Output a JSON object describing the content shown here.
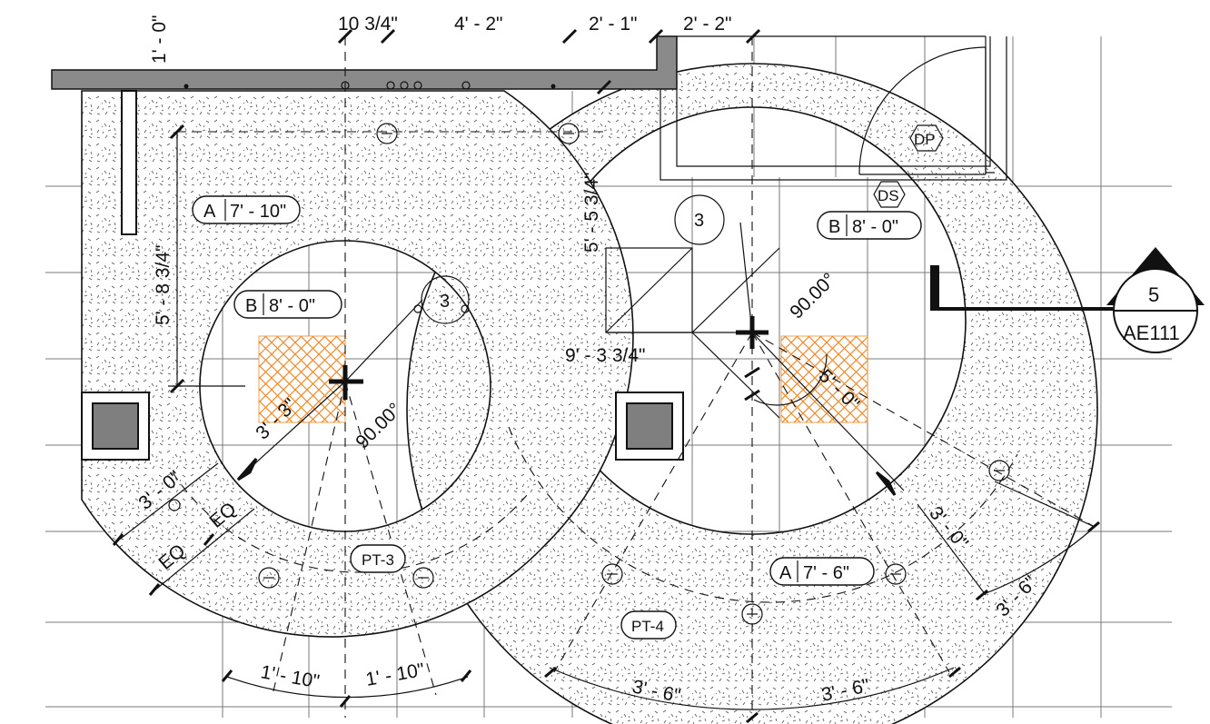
{
  "dimensions": {
    "top_10_3_4": "10 3/4\"",
    "top_4_2": "4' - 2\"",
    "top_2_1": "2' - 1\"",
    "top_2_2": "2' - 2\"",
    "vert_1_0": "1' - 0\"",
    "vert_5_8_3_4": "5' - 8 3/4\"",
    "vert_5_5_3_4": "5' - 5 3/4\"",
    "horiz_9_3_3_4": "9' - 3 3/4\"",
    "radius_3_3": "3' - 3\"",
    "radius_5_0": "5' - 0\"",
    "angle_left": "90.00°",
    "angle_right": "90.00°",
    "band_3_0_left": "3' - 0\"",
    "band_3_0_right": "3' - 0\"",
    "eq_1": "EQ",
    "eq_2": "EQ",
    "arc_1_10_a": "1' - 10\"",
    "arc_1_10_b": "1' - 10\"",
    "arc_3_6_a": "3' - 6\"",
    "arc_3_6_b": "3' - 6\"",
    "arc_3_6_c": "3' - 6\""
  },
  "ceiling_tags": {
    "a_left": {
      "letter": "A",
      "height": "7' - 10\""
    },
    "b_left": {
      "letter": "B",
      "height": "8' - 0\""
    },
    "b_right": {
      "letter": "B",
      "height": "8' - 0\""
    },
    "a_right": {
      "letter": "A",
      "height": "7' - 6\""
    }
  },
  "material_tags": {
    "left": "PT-3",
    "right": "PT-4"
  },
  "keynotes": {
    "left": "3",
    "right": "3"
  },
  "device_tags": {
    "dp": "DP",
    "ds": "DS"
  },
  "section_marker": {
    "number": "5",
    "sheet": "AE111"
  }
}
